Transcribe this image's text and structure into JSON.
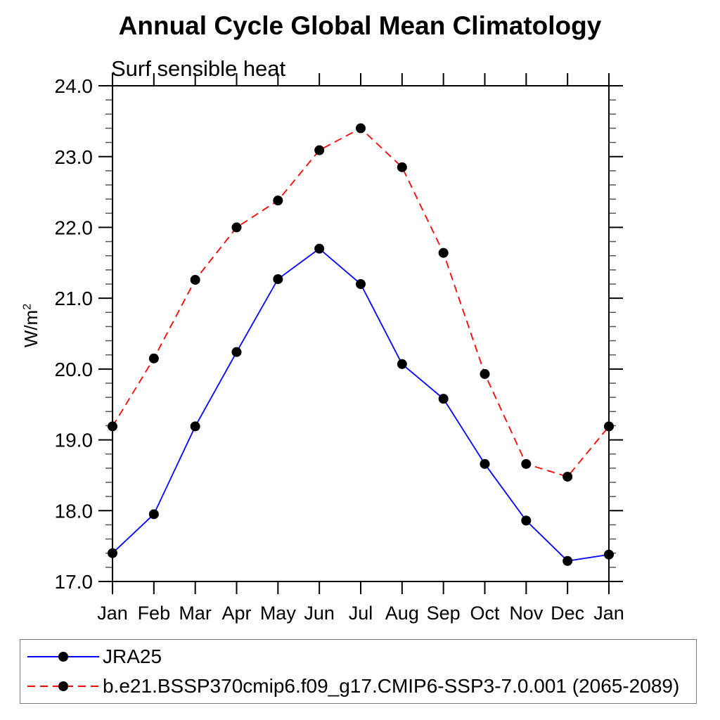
{
  "title": "Annual Cycle Global Mean Climatology",
  "subtitle": "Surf sensible heat",
  "y_axis": {
    "label_base": "W/m",
    "label_exponent": "2"
  },
  "chart_data": {
    "type": "line",
    "categories": [
      "Jan",
      "Feb",
      "Mar",
      "Apr",
      "May",
      "Jun",
      "Jul",
      "Aug",
      "Sep",
      "Oct",
      "Nov",
      "Dec",
      "Jan"
    ],
    "series": [
      {
        "name": "JRA25",
        "color": "#0000ff",
        "dash": "solid",
        "marker": "filled-circle",
        "marker_color": "#000000",
        "values": [
          17.4,
          17.95,
          19.19,
          20.24,
          21.27,
          21.7,
          21.2,
          20.07,
          19.58,
          18.66,
          17.86,
          17.29,
          17.38
        ]
      },
      {
        "name": "b.e21.BSSP370cmip6.f09_g17.CMIP6-SSP3-7.0.001 (2065-2089)",
        "color": "#ff0000",
        "dash": "dashed",
        "marker": "filled-circle",
        "marker_color": "#000000",
        "values": [
          19.19,
          20.15,
          21.26,
          22.0,
          22.38,
          23.09,
          23.4,
          22.85,
          21.64,
          19.93,
          18.66,
          18.48,
          19.19
        ]
      }
    ],
    "ylim": [
      17.0,
      24.0
    ],
    "ytick_step": 1.0,
    "ytick_labels": [
      "17.0",
      "18.0",
      "19.0",
      "20.0",
      "21.0",
      "22.0",
      "23.0",
      "24.0"
    ],
    "yminor_step": 0.2,
    "xlabel": "",
    "ylabel": "W/m2",
    "grid": false,
    "legend_position": "bottom-left-box"
  }
}
